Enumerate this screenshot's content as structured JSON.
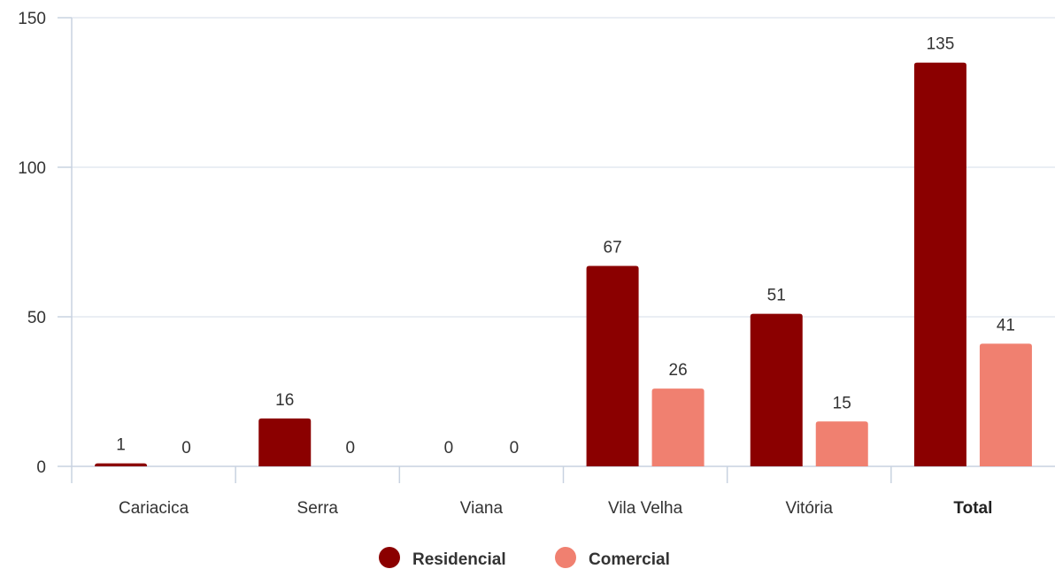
{
  "chart_data": {
    "type": "bar",
    "categories": [
      "Cariacica",
      "Serra",
      "Viana",
      "Vila Velha",
      "Vitória",
      "Total"
    ],
    "bold_categories": [
      "Total"
    ],
    "series": [
      {
        "name": "Residencial",
        "color": "#8b0000",
        "values": [
          1,
          16,
          0,
          67,
          51,
          135
        ]
      },
      {
        "name": "Comercial",
        "color": "#f08070",
        "values": [
          0,
          0,
          0,
          26,
          15,
          41
        ]
      }
    ],
    "ylim": [
      0,
      150
    ],
    "yticks": [
      0,
      50,
      100,
      150
    ],
    "grid": true,
    "data_labels": true,
    "legend_position": "bottom-center",
    "title": "",
    "xlabel": "",
    "ylabel": ""
  }
}
